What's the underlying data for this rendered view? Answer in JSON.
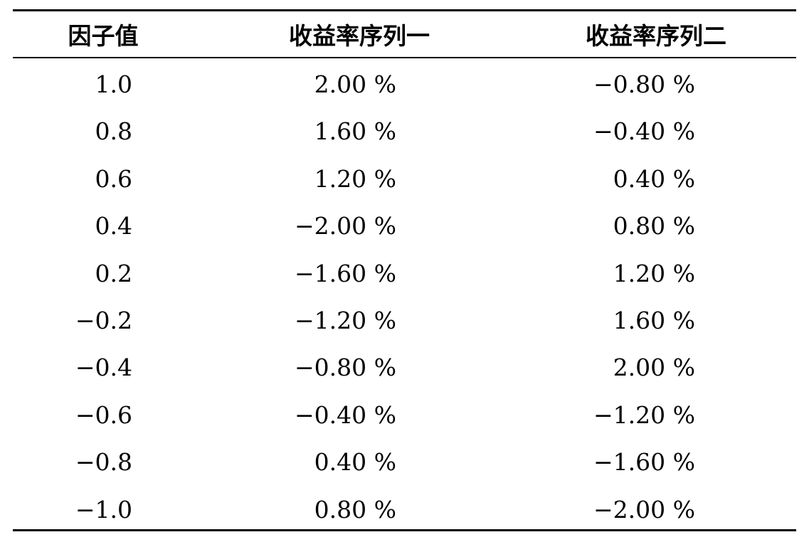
{
  "chart_data": {
    "type": "table",
    "columns": [
      "因子值",
      "收益率序列一",
      "收益率序列二"
    ],
    "rows": [
      [
        "1.0",
        "2.00 %",
        "−0.80 %"
      ],
      [
        "0.8",
        "1.60 %",
        "−0.40 %"
      ],
      [
        "0.6",
        "1.20 %",
        "0.40 %"
      ],
      [
        "0.4",
        "−2.00 %",
        "0.80 %"
      ],
      [
        "0.2",
        "−1.60 %",
        "1.20 %"
      ],
      [
        "−0.2",
        "−1.20 %",
        "1.60 %"
      ],
      [
        "−0.4",
        "−0.80 %",
        "2.00 %"
      ],
      [
        "−0.6",
        "−0.40 %",
        "−1.20 %"
      ],
      [
        "−0.8",
        "0.40 %",
        "−1.60 %"
      ],
      [
        "−1.0",
        "0.80 %",
        "−2.00 %"
      ]
    ]
  }
}
